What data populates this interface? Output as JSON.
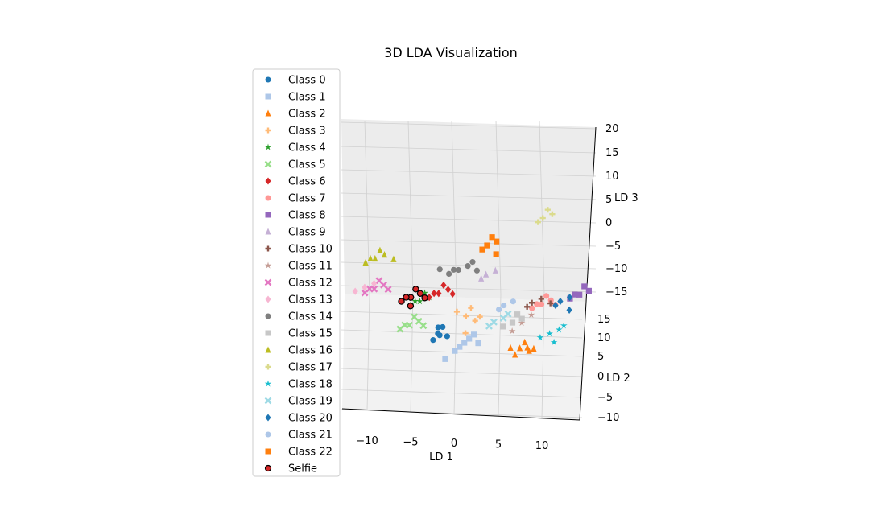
{
  "chart_data": {
    "type": "scatter",
    "title": "3D LDA Visualization",
    "xlabel": "LD 1",
    "ylabel": "LD 2",
    "zlabel": "LD 3",
    "x_ticks": [
      "−10",
      "−5",
      "0",
      "5",
      "10"
    ],
    "y_ticks": [
      "−10",
      "−5",
      "0",
      "5",
      "10",
      "15"
    ],
    "z_ticks": [
      "−15",
      "−10",
      "−5",
      "0",
      "5",
      "10",
      "15",
      "20"
    ],
    "xlim": [
      -13,
      13
    ],
    "ylim": [
      -12,
      17
    ],
    "zlim": [
      -17,
      21
    ],
    "grid": true,
    "legend_position": "left",
    "series": [
      {
        "name": "Class 0",
        "color": "#1f77b4",
        "marker": "circle",
        "points": [
          [
            -3,
            -2,
            -8
          ],
          [
            -2.5,
            -1.5,
            -7
          ],
          [
            -3.5,
            -2.5,
            -9
          ],
          [
            -2,
            -2,
            -8.5
          ],
          [
            -3,
            -1,
            -7.5
          ],
          [
            -2.8,
            -2.2,
            -8.2
          ]
        ]
      },
      {
        "name": "Class 1",
        "color": "#aec7e8",
        "marker": "square",
        "points": [
          [
            0,
            -7,
            -6
          ],
          [
            1,
            -6,
            -5
          ],
          [
            -1,
            -8,
            -7
          ],
          [
            0.5,
            -6.5,
            -5.5
          ],
          [
            -0.5,
            -7.5,
            -6.5
          ],
          [
            1.5,
            -7,
            -6
          ],
          [
            -2,
            -9,
            -8
          ]
        ]
      },
      {
        "name": "Class 2",
        "color": "#ff7f0e",
        "marker": "triangle",
        "points": [
          [
            6,
            -8,
            -6
          ],
          [
            7,
            -8,
            -6.5
          ],
          [
            6.5,
            -7,
            -5.5
          ],
          [
            5.5,
            -8.5,
            -7
          ],
          [
            7.5,
            -8,
            -6
          ],
          [
            6.8,
            -7.5,
            -6.2
          ],
          [
            5,
            -8,
            -6
          ]
        ]
      },
      {
        "name": "Class 3",
        "color": "#ffbb78",
        "marker": "plus",
        "points": [
          [
            0,
            -1,
            -5
          ],
          [
            1,
            -1.5,
            -5.5
          ],
          [
            -1,
            -0.5,
            -4.5
          ],
          [
            0.5,
            0,
            -4
          ],
          [
            1.5,
            -1,
            -5
          ],
          [
            0,
            -3,
            -7
          ]
        ]
      },
      {
        "name": "Class 4",
        "color": "#2ca02c",
        "marker": "star",
        "points": [
          [
            -5,
            0,
            -3
          ],
          [
            -4,
            0.5,
            -2.5
          ],
          [
            -6,
            -0.5,
            -3.5
          ],
          [
            -4.5,
            1,
            -2
          ],
          [
            -5.5,
            0,
            -3
          ]
        ]
      },
      {
        "name": "Class 5",
        "color": "#98df8a",
        "marker": "x",
        "points": [
          [
            -6,
            -4,
            -5
          ],
          [
            -5,
            -3.5,
            -4.5
          ],
          [
            -7,
            -4.5,
            -5.5
          ],
          [
            -5.5,
            -3,
            -4
          ],
          [
            -6.5,
            -4,
            -5
          ],
          [
            -4.5,
            -4,
            -5
          ]
        ]
      },
      {
        "name": "Class 6",
        "color": "#d62728",
        "marker": "diamond",
        "points": [
          [
            -3,
            1,
            -2
          ],
          [
            -2,
            1.5,
            -1.5
          ],
          [
            -4,
            0.5,
            -2.5
          ],
          [
            -2.5,
            2,
            -1
          ],
          [
            -3.5,
            1,
            -2
          ],
          [
            -1.5,
            1,
            -2
          ]
        ]
      },
      {
        "name": "Class 7",
        "color": "#ff9896",
        "marker": "circle",
        "points": [
          [
            8,
            3,
            -5
          ],
          [
            9,
            3.5,
            -4.5
          ],
          [
            7,
            2.5,
            -5.5
          ],
          [
            8.5,
            4,
            -4
          ],
          [
            7.5,
            3,
            -5
          ],
          [
            9.5,
            3,
            -5
          ]
        ]
      },
      {
        "name": "Class 8",
        "color": "#9467bd",
        "marker": "square",
        "points": [
          [
            12,
            6,
            -5
          ],
          [
            13,
            6.5,
            -4.5
          ],
          [
            11,
            5.5,
            -5.5
          ],
          [
            12.5,
            7,
            -4
          ],
          [
            11.5,
            6,
            -5
          ]
        ]
      },
      {
        "name": "Class 9",
        "color": "#c5b0d5",
        "marker": "triangle",
        "points": [
          [
            2,
            4,
            0
          ],
          [
            3,
            4.5,
            0.5
          ],
          [
            1.5,
            3.5,
            -0.5
          ]
        ]
      },
      {
        "name": "Class 10",
        "color": "#8c564b",
        "marker": "plus",
        "points": [
          [
            7,
            2,
            -4
          ],
          [
            8,
            2.5,
            -3.5
          ],
          [
            6.5,
            1.5,
            -4.5
          ],
          [
            9,
            2,
            -4
          ]
        ]
      },
      {
        "name": "Class 11",
        "color": "#c49c94",
        "marker": "star",
        "points": [
          [
            6,
            -1,
            -6
          ],
          [
            7,
            0,
            -5
          ],
          [
            5,
            -2,
            -7
          ]
        ]
      },
      {
        "name": "Class 12",
        "color": "#e377c2",
        "marker": "x",
        "points": [
          [
            -10,
            3,
            -3
          ],
          [
            -9,
            3.5,
            -2.5
          ],
          [
            -11,
            2.5,
            -3.5
          ],
          [
            -9.5,
            4,
            -2
          ],
          [
            -10.5,
            3,
            -3
          ],
          [
            -8.5,
            3,
            -3
          ]
        ]
      },
      {
        "name": "Class 13",
        "color": "#f7b6d2",
        "marker": "diamond",
        "points": [
          [
            -11,
            2,
            -2
          ],
          [
            -10,
            2.5,
            -1.5
          ],
          [
            -12,
            1.5,
            -2.5
          ]
        ]
      },
      {
        "name": "Class 14",
        "color": "#7f7f7f",
        "marker": "circle",
        "points": [
          [
            -1,
            5,
            0
          ],
          [
            0,
            5.5,
            0.5
          ],
          [
            -2,
            4.5,
            -0.5
          ],
          [
            0.5,
            6,
            1
          ],
          [
            -1.5,
            5,
            0
          ],
          [
            1,
            5,
            0
          ],
          [
            -3,
            5,
            0
          ]
        ]
      },
      {
        "name": "Class 15",
        "color": "#c7c7c7",
        "marker": "square",
        "points": [
          [
            5,
            -1,
            -6
          ],
          [
            6,
            -0.5,
            -5.5
          ],
          [
            4,
            -1.5,
            -6.5
          ],
          [
            5.5,
            0,
            -5
          ]
        ]
      },
      {
        "name": "Class 16",
        "color": "#bcbd22",
        "marker": "triangle",
        "points": [
          [
            -10,
            6,
            1
          ],
          [
            -9,
            6.5,
            1.5
          ],
          [
            -11,
            5.5,
            0.5
          ],
          [
            -8,
            6,
            1
          ],
          [
            -9.5,
            7,
            2
          ],
          [
            -10.5,
            6,
            1
          ]
        ]
      },
      {
        "name": "Class 17",
        "color": "#dbdb8d",
        "marker": "plus",
        "points": [
          [
            8,
            8,
            9
          ],
          [
            9,
            8.5,
            9.5
          ],
          [
            7.5,
            7.5,
            8.5
          ],
          [
            8.5,
            9,
            10
          ]
        ]
      },
      {
        "name": "Class 18",
        "color": "#17becf",
        "marker": "star",
        "points": [
          [
            9,
            -1,
            -8
          ],
          [
            10,
            -0.5,
            -7.5
          ],
          [
            8,
            -1.5,
            -8.5
          ],
          [
            10.5,
            0,
            -7
          ],
          [
            9.5,
            -2,
            -9
          ]
        ]
      },
      {
        "name": "Class 19",
        "color": "#9edae5",
        "marker": "x",
        "points": [
          [
            3,
            -1,
            -6
          ],
          [
            4,
            -0.5,
            -5.5
          ],
          [
            2.5,
            -1.5,
            -6.5
          ],
          [
            4.5,
            0,
            -5
          ]
        ]
      },
      {
        "name": "Class 20",
        "color": "#1f77b4",
        "marker": "diamond",
        "points": [
          [
            10,
            4,
            -5
          ],
          [
            11,
            4.5,
            -4.5
          ],
          [
            9.5,
            3.5,
            -5.5
          ],
          [
            11,
            3,
            -6
          ]
        ]
      },
      {
        "name": "Class 21",
        "color": "#aec7e8",
        "marker": "circle",
        "points": [
          [
            4,
            1,
            -4
          ],
          [
            5,
            1.5,
            -3.5
          ],
          [
            3.5,
            0.5,
            -4.5
          ]
        ]
      },
      {
        "name": "Class 22",
        "color": "#ff7f0e",
        "marker": "square",
        "points": [
          [
            2,
            8,
            3
          ],
          [
            3,
            8.5,
            3.5
          ],
          [
            1.5,
            7.5,
            2.5
          ],
          [
            2.5,
            9,
            4
          ],
          [
            3,
            7,
            2
          ]
        ]
      },
      {
        "name": "Selfie",
        "color": "#d62728",
        "marker": "circle-edge",
        "points": [
          [
            -6,
            1,
            -3
          ],
          [
            -5,
            1.5,
            -2.5
          ],
          [
            -7,
            0.5,
            -3.5
          ],
          [
            -5.5,
            2,
            -2
          ],
          [
            -6.5,
            1,
            -3
          ],
          [
            -4.5,
            1,
            -3
          ],
          [
            -6,
            0,
            -4
          ]
        ]
      }
    ]
  }
}
